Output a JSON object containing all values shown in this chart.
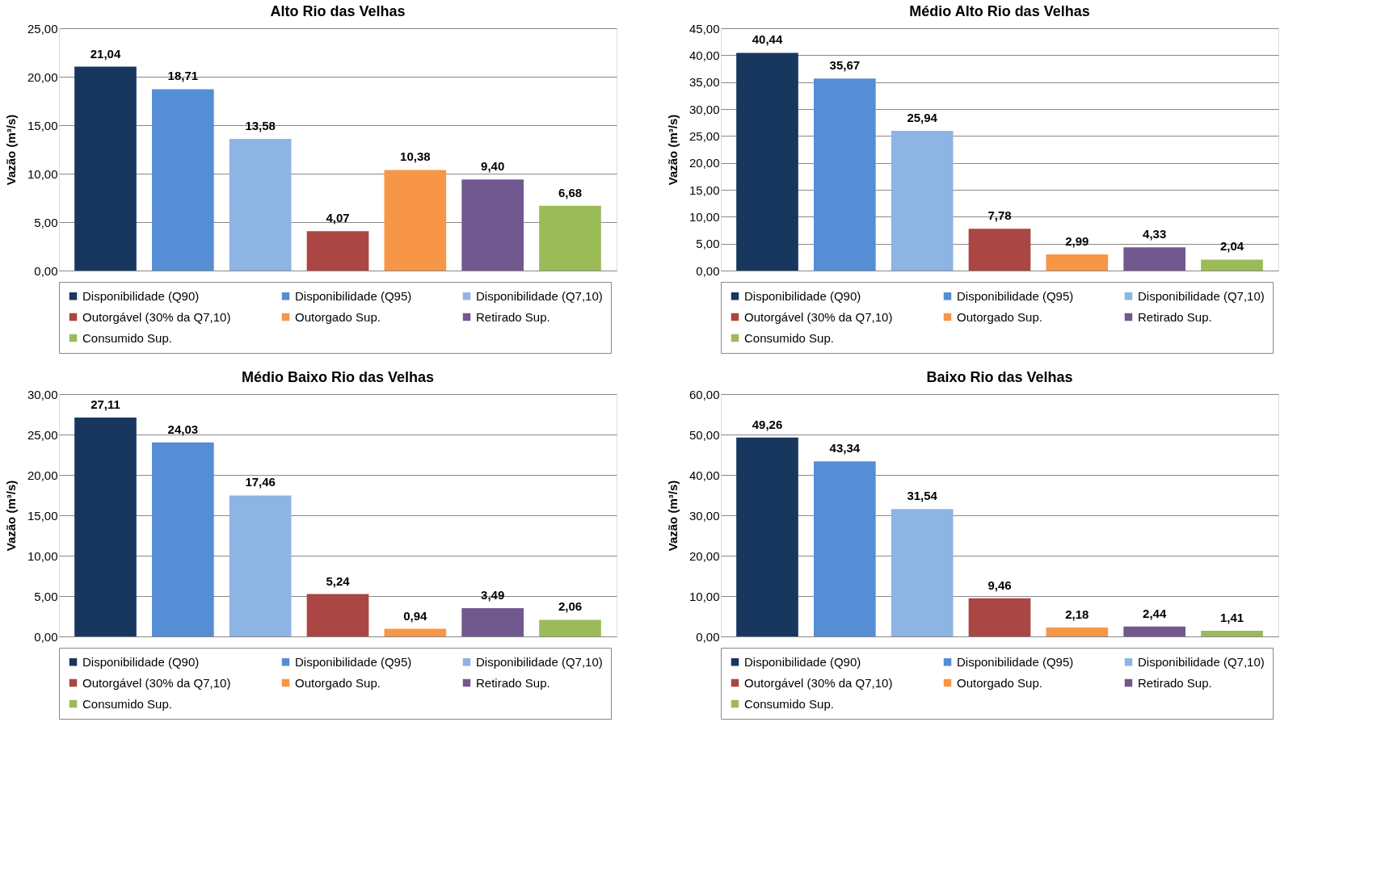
{
  "chart_data": [
    {
      "type": "bar",
      "title": "Alto Rio das Velhas",
      "ylabel": "Vazão (m³/s)",
      "categories": [
        null
      ],
      "ylim": [
        0,
        25
      ],
      "yticks": [
        {
          "value": 0,
          "label": "0,00"
        },
        {
          "value": 5,
          "label": "5,00"
        },
        {
          "value": 10,
          "label": "10,00"
        },
        {
          "value": 15,
          "label": "15,00"
        },
        {
          "value": 20,
          "label": "20,00"
        },
        {
          "value": 25,
          "label": "25,00"
        }
      ],
      "grid": "y",
      "legend": "bottom",
      "series": [
        {
          "name": "Disponibilidade (Q90)",
          "color": "#17375e",
          "values": [
            21.04
          ],
          "value_labels": [
            "21,04"
          ]
        },
        {
          "name": "Disponibilidade (Q95)",
          "color": "#558ed5",
          "values": [
            18.71
          ],
          "value_labels": [
            "18,71"
          ]
        },
        {
          "name": "Disponibilidade (Q7,10)",
          "color": "#8eb4e3",
          "values": [
            13.58
          ],
          "value_labels": [
            "13,58"
          ]
        },
        {
          "name": "Outorgável (30% da Q7,10)",
          "color": "#aa4643",
          "values": [
            4.07
          ],
          "value_labels": [
            "4,07"
          ]
        },
        {
          "name": "Outorgado Sup.",
          "color": "#f79646",
          "values": [
            10.38
          ],
          "value_labels": [
            "10,38"
          ]
        },
        {
          "name": "Retirado Sup.",
          "color": "#71588f",
          "values": [
            9.4
          ],
          "value_labels": [
            "9,40"
          ]
        },
        {
          "name": "Consumido Sup.",
          "color": "#9bbb59",
          "values": [
            6.68
          ],
          "value_labels": [
            "6,68"
          ]
        }
      ]
    },
    {
      "type": "bar",
      "title": "Médio Alto Rio das Velhas",
      "ylabel": "Vazão (m³/s)",
      "categories": [
        null
      ],
      "ylim": [
        0,
        45
      ],
      "yticks": [
        {
          "value": 0,
          "label": "0,00"
        },
        {
          "value": 5,
          "label": "5,00"
        },
        {
          "value": 10,
          "label": "10,00"
        },
        {
          "value": 15,
          "label": "15,00"
        },
        {
          "value": 20,
          "label": "20,00"
        },
        {
          "value": 25,
          "label": "25,00"
        },
        {
          "value": 30,
          "label": "30,00"
        },
        {
          "value": 35,
          "label": "35,00"
        },
        {
          "value": 40,
          "label": "40,00"
        },
        {
          "value": 45,
          "label": "45,00"
        }
      ],
      "grid": "y",
      "legend": "bottom",
      "series": [
        {
          "name": "Disponibilidade (Q90)",
          "color": "#17375e",
          "values": [
            40.44
          ],
          "value_labels": [
            "40,44"
          ]
        },
        {
          "name": "Disponibilidade (Q95)",
          "color": "#558ed5",
          "values": [
            35.67
          ],
          "value_labels": [
            "35,67"
          ]
        },
        {
          "name": "Disponibilidade (Q7,10)",
          "color": "#8eb4e3",
          "values": [
            25.94
          ],
          "value_labels": [
            "25,94"
          ]
        },
        {
          "name": "Outorgável (30% da Q7,10)",
          "color": "#aa4643",
          "values": [
            7.78
          ],
          "value_labels": [
            "7,78"
          ]
        },
        {
          "name": "Outorgado Sup.",
          "color": "#f79646",
          "values": [
            2.99
          ],
          "value_labels": [
            "2,99"
          ]
        },
        {
          "name": "Retirado Sup.",
          "color": "#71588f",
          "values": [
            4.33
          ],
          "value_labels": [
            "4,33"
          ]
        },
        {
          "name": "Consumido Sup.",
          "color": "#9bbb59",
          "values": [
            2.04
          ],
          "value_labels": [
            "2,04"
          ]
        }
      ]
    },
    {
      "type": "bar",
      "title": "Médio Baixo Rio das Velhas",
      "ylabel": "Vazão (m³/s)",
      "categories": [
        null
      ],
      "ylim": [
        0,
        30
      ],
      "yticks": [
        {
          "value": 0,
          "label": "0,00"
        },
        {
          "value": 5,
          "label": "5,00"
        },
        {
          "value": 10,
          "label": "10,00"
        },
        {
          "value": 15,
          "label": "15,00"
        },
        {
          "value": 20,
          "label": "20,00"
        },
        {
          "value": 25,
          "label": "25,00"
        },
        {
          "value": 30,
          "label": "30,00"
        }
      ],
      "grid": "y",
      "legend": "bottom",
      "series": [
        {
          "name": "Disponibilidade (Q90)",
          "color": "#17375e",
          "values": [
            27.11
          ],
          "value_labels": [
            "27,11"
          ]
        },
        {
          "name": "Disponibilidade (Q95)",
          "color": "#558ed5",
          "values": [
            24.03
          ],
          "value_labels": [
            "24,03"
          ]
        },
        {
          "name": "Disponibilidade (Q7,10)",
          "color": "#8eb4e3",
          "values": [
            17.46
          ],
          "value_labels": [
            "17,46"
          ]
        },
        {
          "name": "Outorgável (30% da Q7,10)",
          "color": "#aa4643",
          "values": [
            5.24
          ],
          "value_labels": [
            "5,24"
          ]
        },
        {
          "name": "Outorgado Sup.",
          "color": "#f79646",
          "values": [
            0.94
          ],
          "value_labels": [
            "0,94"
          ]
        },
        {
          "name": "Retirado Sup.",
          "color": "#71588f",
          "values": [
            3.49
          ],
          "value_labels": [
            "3,49"
          ]
        },
        {
          "name": "Consumido Sup.",
          "color": "#9bbb59",
          "values": [
            2.06
          ],
          "value_labels": [
            "2,06"
          ]
        }
      ]
    },
    {
      "type": "bar",
      "title": "Baixo Rio das Velhas",
      "ylabel": "Vazão (m³/s)",
      "categories": [
        null
      ],
      "ylim": [
        0,
        60
      ],
      "yticks": [
        {
          "value": 0,
          "label": "0,00"
        },
        {
          "value": 10,
          "label": "10,00"
        },
        {
          "value": 20,
          "label": "20,00"
        },
        {
          "value": 30,
          "label": "30,00"
        },
        {
          "value": 40,
          "label": "40,00"
        },
        {
          "value": 50,
          "label": "50,00"
        },
        {
          "value": 60,
          "label": "60,00"
        }
      ],
      "grid": "y",
      "legend": "bottom",
      "series": [
        {
          "name": "Disponibilidade (Q90)",
          "color": "#17375e",
          "values": [
            49.26
          ],
          "value_labels": [
            "49,26"
          ]
        },
        {
          "name": "Disponibilidade (Q95)",
          "color": "#558ed5",
          "values": [
            43.34
          ],
          "value_labels": [
            "43,34"
          ]
        },
        {
          "name": "Disponibilidade (Q7,10)",
          "color": "#8eb4e3",
          "values": [
            31.54
          ],
          "value_labels": [
            "31,54"
          ]
        },
        {
          "name": "Outorgável (30% da Q7,10)",
          "color": "#aa4643",
          "values": [
            9.46
          ],
          "value_labels": [
            "9,46"
          ]
        },
        {
          "name": "Outorgado Sup.",
          "color": "#f79646",
          "values": [
            2.18
          ],
          "value_labels": [
            "2,18"
          ]
        },
        {
          "name": "Retirado Sup.",
          "color": "#71588f",
          "values": [
            2.44
          ],
          "value_labels": [
            "2,44"
          ]
        },
        {
          "name": "Consumido Sup.",
          "color": "#9bbb59",
          "values": [
            1.41
          ],
          "value_labels": [
            "1,41"
          ]
        }
      ]
    }
  ]
}
